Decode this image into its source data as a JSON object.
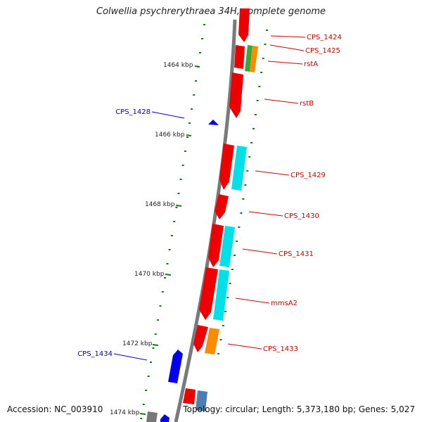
{
  "title": "Colwellia psychrerythraea 34H, complete genome",
  "accession": "Accession: NC_003910",
  "summary": "Topology: circular; Length: 5,373,180 bp; Genes: 5,027",
  "colors": {
    "backbone": "#7a7a7a",
    "tick": "#1a7a1a",
    "forward_gene": "#ee0000",
    "reverse_gene": "#0000ee",
    "label_forward": "#cc0000",
    "label_reverse": "#0000cc",
    "cyan_feature": "#00e0e8",
    "orange_feature": "#ff8c00",
    "green_feature": "#33aa33",
    "steelblue_feature": "#4d7fb3",
    "gray_feature": "#777777"
  },
  "scale_labels": [
    "1464 kbp",
    "1466 kbp",
    "1468 kbp",
    "1470 kbp",
    "1472 kbp",
    "1474 kbp"
  ],
  "gene_labels": [
    {
      "text": "CPS_1424",
      "strand": "forward"
    },
    {
      "text": "CPS_1425",
      "strand": "forward"
    },
    {
      "text": "rstA",
      "strand": "forward"
    },
    {
      "text": "rstB",
      "strand": "forward"
    },
    {
      "text": "CPS_1428",
      "strand": "reverse"
    },
    {
      "text": "CPS_1429",
      "strand": "forward"
    },
    {
      "text": "CPS_1430",
      "strand": "forward"
    },
    {
      "text": "CPS_1431",
      "strand": "forward"
    },
    {
      "text": "mmsA2",
      "strand": "forward"
    },
    {
      "text": "CPS_1433",
      "strand": "forward"
    },
    {
      "text": "CPS_1434",
      "strand": "reverse"
    }
  ]
}
